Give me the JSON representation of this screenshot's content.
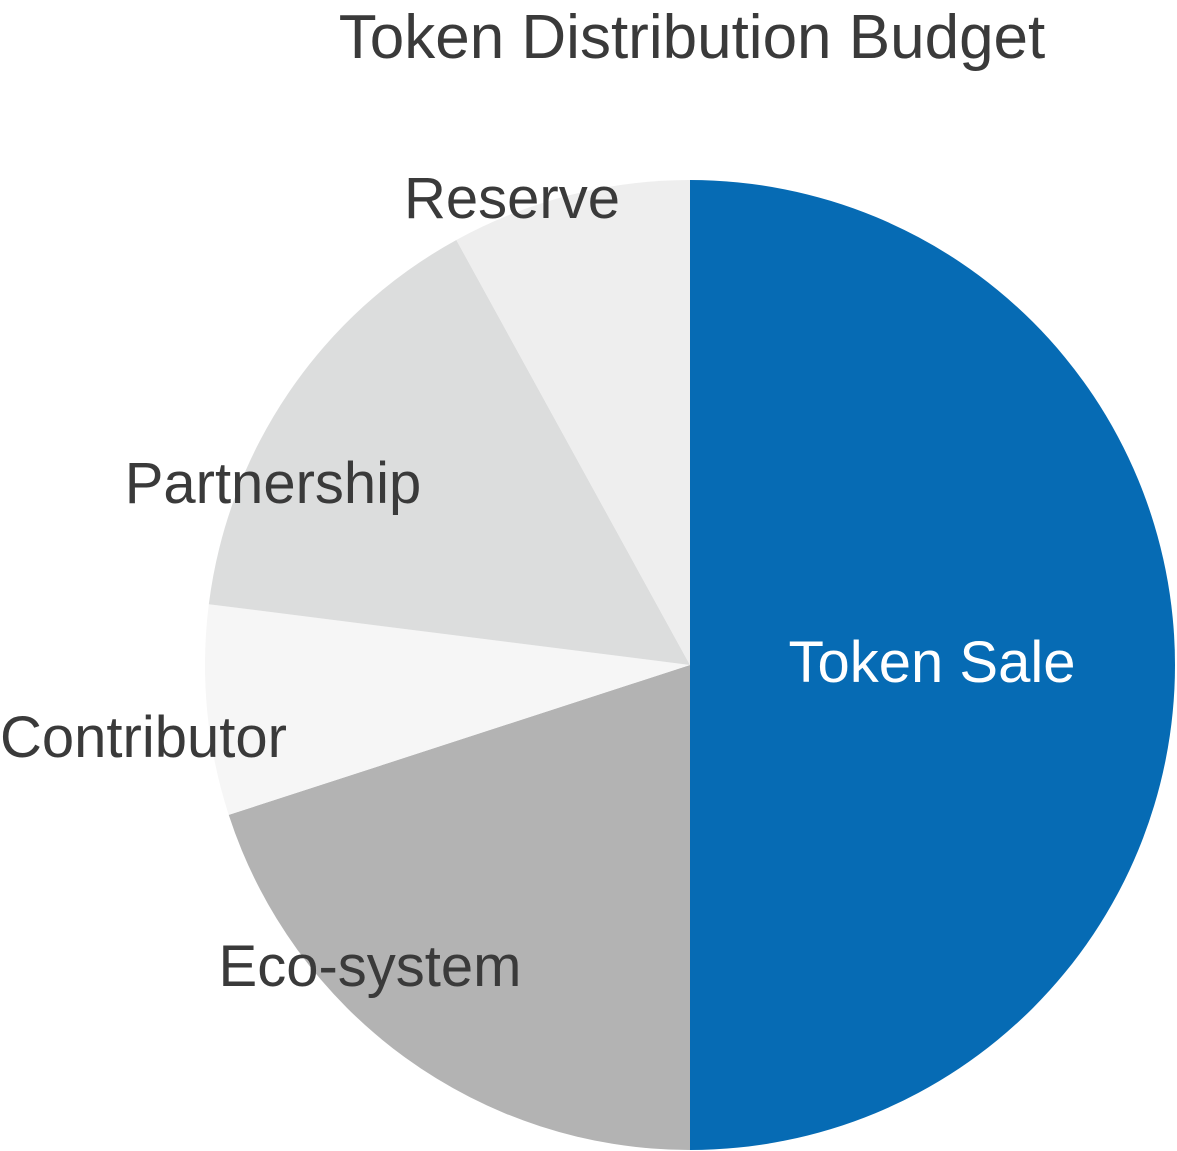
{
  "chart_data": {
    "type": "pie",
    "title": "Token Distribution Budget",
    "slices": [
      {
        "label": "Token Sale",
        "value": 50,
        "color": "#066bb4",
        "label_color": "#ffffff"
      },
      {
        "label": "Eco-system",
        "value": 20,
        "color": "#b3b3b3",
        "label_color": "#3a3a3a"
      },
      {
        "label": "Contributor",
        "value": 7,
        "color": "#f6f6f6",
        "label_color": "#3a3a3a"
      },
      {
        "label": "Partnership",
        "value": 15,
        "color": "#dcdddd",
        "label_color": "#3a3a3a"
      },
      {
        "label": "Reserve",
        "value": 8,
        "color": "#eeeeee",
        "label_color": "#3a3a3a"
      }
    ]
  }
}
